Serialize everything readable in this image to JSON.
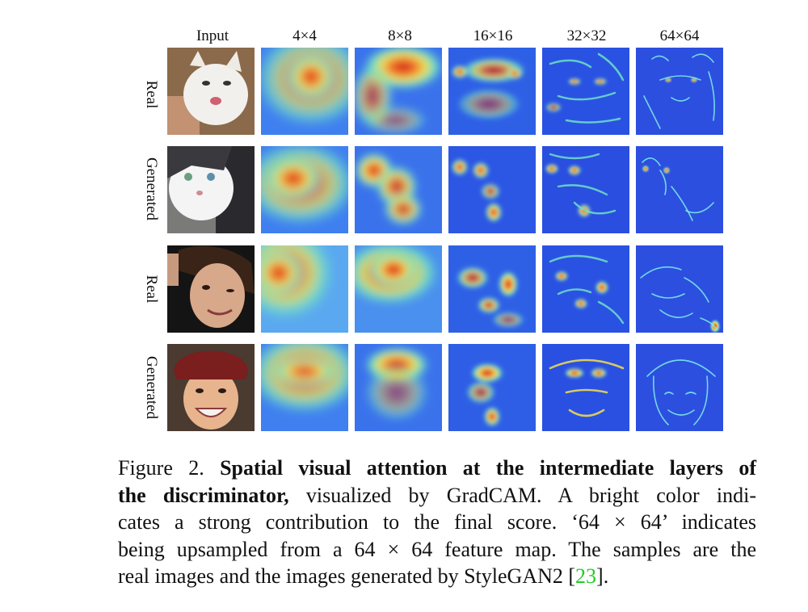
{
  "figure": {
    "columns": [
      "Input",
      "4×4",
      "8×8",
      "16×16",
      "32×32",
      "64×64"
    ],
    "rows": [
      {
        "label": "Real",
        "subject": "cat"
      },
      {
        "label": "Generated",
        "subject": "cat"
      },
      {
        "label": "Real",
        "subject": "face"
      },
      {
        "label": "Generated",
        "subject": "face"
      }
    ]
  },
  "caption": {
    "fig_no": "Figure 2.",
    "bold_1": "Spatial visual attention at the intermediate layers of",
    "bold_2": "the discriminator,",
    "line_2_rest": "visualized by GradCAM. A bright color indi-",
    "line_3": "cates a strong contribution to the final score. ‘64 × 64’ indicates",
    "line_4": "being upsampled from a 64 × 64 feature map. The samples are the",
    "line_5_pre": "real images and the images generated by StyleGAN2 [",
    "cite": "23",
    "line_5_post": "]."
  }
}
